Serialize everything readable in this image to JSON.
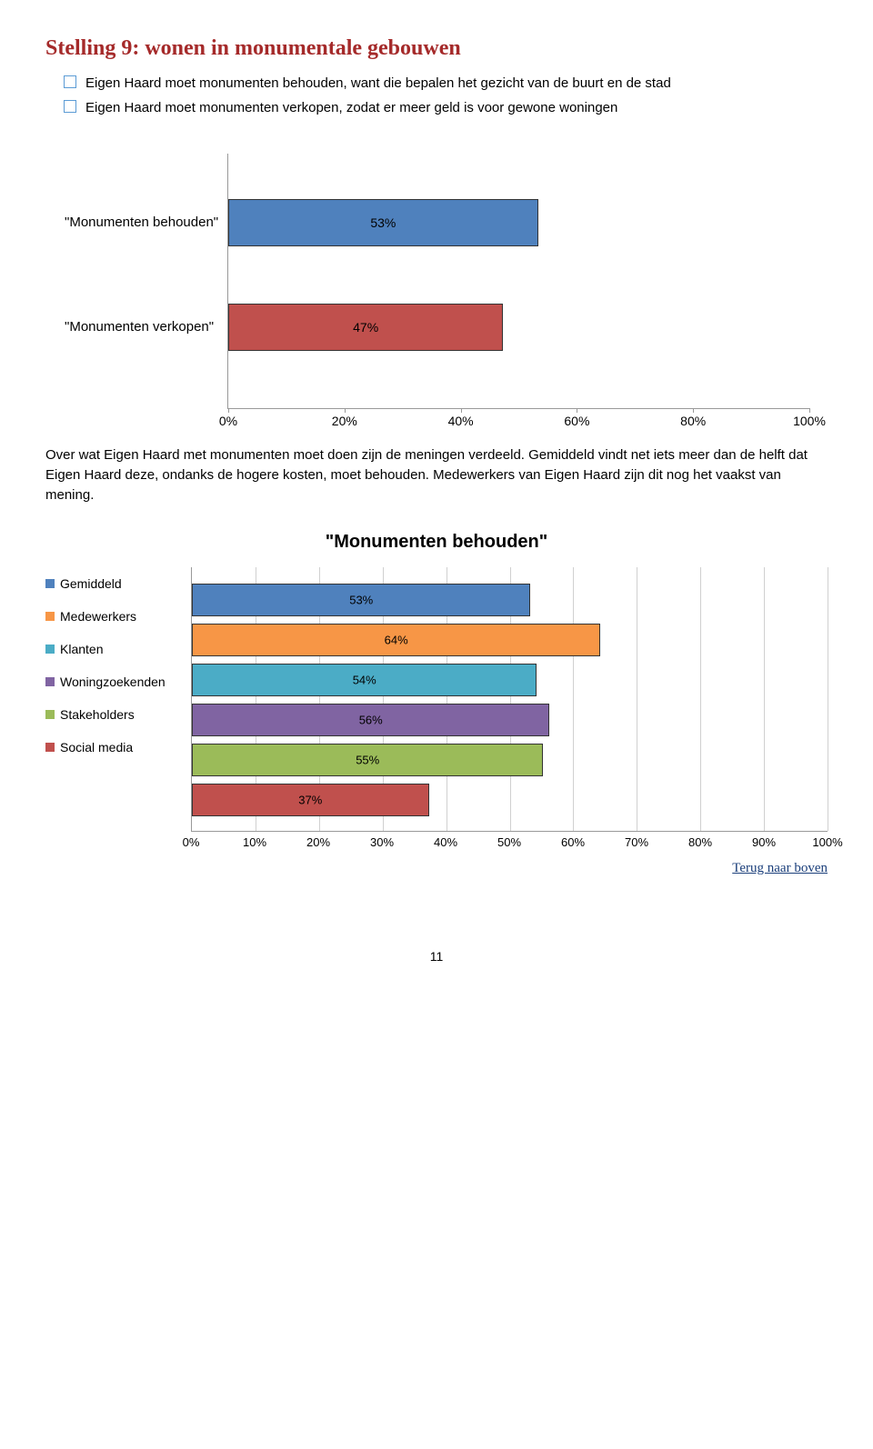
{
  "title": "Stelling 9: wonen in monumentale gebouwen",
  "options": [
    "Eigen Haard moet monumenten behouden, want die bepalen het gezicht van de buurt en de stad",
    "Eigen Haard moet monumenten verkopen, zodat er meer geld is voor gewone woningen"
  ],
  "chart1": {
    "type": "bar",
    "xlim": [
      0,
      100
    ],
    "xticks": [
      "0%",
      "20%",
      "40%",
      "60%",
      "80%",
      "100%"
    ],
    "rows": [
      {
        "label": "\"Monumenten behouden\"",
        "value": 53,
        "value_label": "53%",
        "color": "#4f81bd"
      },
      {
        "label": "\"Monumenten verkopen\"",
        "value": 47,
        "value_label": "47%",
        "color": "#c0504d"
      }
    ],
    "border_color": "#333333",
    "axis_color": "#999999"
  },
  "paragraph": "Over wat Eigen Haard met monumenten moet doen zijn de meningen verdeeld. Gemiddeld vindt net iets meer dan de helft dat Eigen Haard deze, ondanks de hogere kosten, moet behouden. Medewerkers van Eigen Haard zijn dit nog het vaakst van mening.",
  "chart2": {
    "type": "bar",
    "title": "\"Monumenten behouden\"",
    "xlim": [
      0,
      100
    ],
    "xticks": [
      "0%",
      "10%",
      "20%",
      "30%",
      "40%",
      "50%",
      "60%",
      "70%",
      "80%",
      "90%",
      "100%"
    ],
    "grid_color": "#d0d0d0",
    "legend": [
      {
        "label": "Gemiddeld",
        "color": "#4f81bd"
      },
      {
        "label": "Medewerkers",
        "color": "#f79646"
      },
      {
        "label": "Klanten",
        "color": "#4bacc6"
      },
      {
        "label": "Woningzoekenden",
        "color": "#8064a2"
      },
      {
        "label": "Stakeholders",
        "color": "#9bbb59"
      },
      {
        "label": "Social media",
        "color": "#c0504d"
      }
    ],
    "bars": [
      {
        "value": 53,
        "value_label": "53%",
        "color": "#4f81bd"
      },
      {
        "value": 64,
        "value_label": "64%",
        "color": "#f79646"
      },
      {
        "value": 54,
        "value_label": "54%",
        "color": "#4bacc6"
      },
      {
        "value": 56,
        "value_label": "56%",
        "color": "#8064a2"
      },
      {
        "value": 55,
        "value_label": "55%",
        "color": "#9bbb59"
      },
      {
        "value": 37,
        "value_label": "37%",
        "color": "#c0504d"
      }
    ]
  },
  "back_link": "Terug naar boven",
  "page_num": "11"
}
